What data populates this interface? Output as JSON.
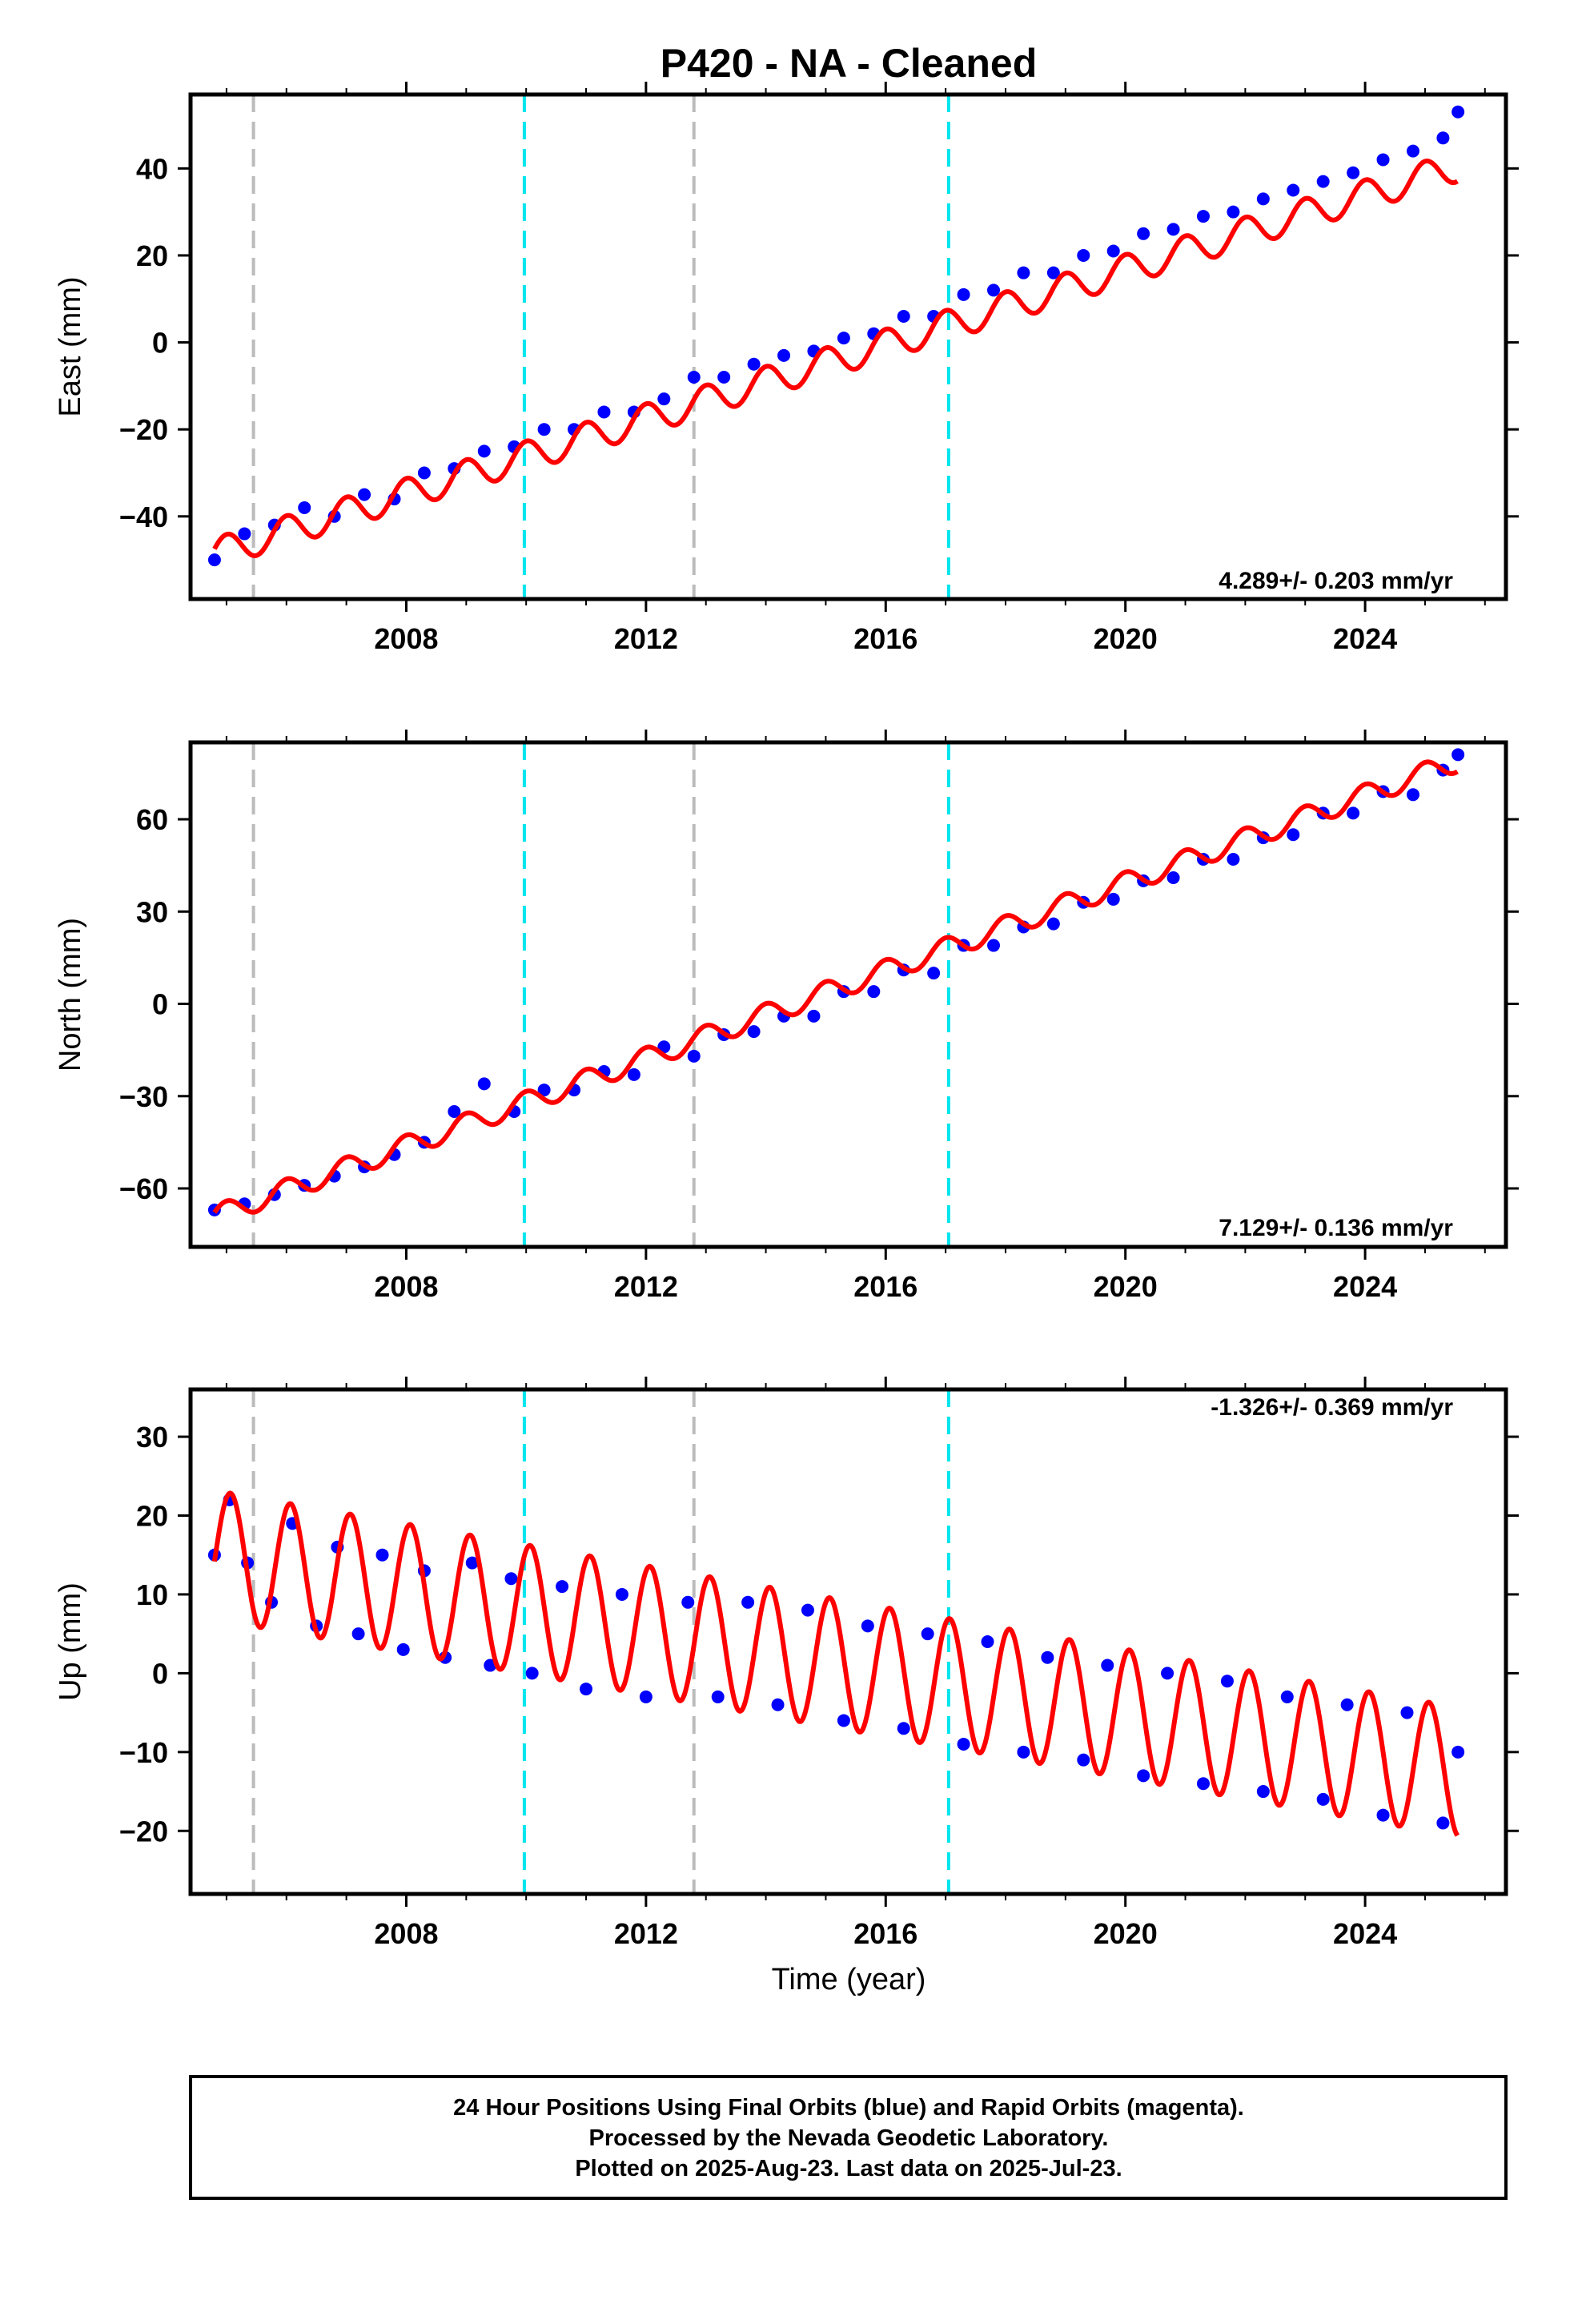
{
  "title": "P420  - NA - Cleaned",
  "xlabel": "Time (year)",
  "footer": {
    "line1": "24 Hour Positions Using Final Orbits (blue) and Rapid Orbits (magenta).",
    "line2": "Processed by the Nevada Geodetic Laboratory.",
    "line3": "Plotted on 2025-Aug-23. Last data on 2025-Jul-23."
  },
  "colors": {
    "data": "#0000ff",
    "fit": "#ff0000",
    "equipment_change": "#bbbbbb",
    "earthquake": "#00e5ee"
  },
  "chart_data": [
    {
      "type": "scatter",
      "component": "East",
      "ylabel": "East (mm)",
      "rate_text": "4.289+/- 0.203 mm/yr",
      "xlim": [
        2004.4,
        2026.35
      ],
      "ylim": [
        -59,
        57
      ],
      "xticks": [
        2008,
        2012,
        2016,
        2020,
        2024
      ],
      "yticks": [
        -40,
        -20,
        0,
        20,
        40
      ],
      "vlines_gray": [
        2005.45,
        2012.8
      ],
      "vlines_cyan": [
        2009.97,
        2017.05
      ],
      "fit": {
        "start": 2004.8,
        "end": 2025.55,
        "t0": 2004.8,
        "offset": -48.5,
        "rate": 4.289,
        "amp": 3.5,
        "phase": 0.3
      },
      "series": [
        {
          "name": "data",
          "x": [
            2004.8,
            2005.3,
            2005.8,
            2006.3,
            2006.8,
            2007.3,
            2007.8,
            2008.3,
            2008.8,
            2009.3,
            2009.8,
            2010.3,
            2010.8,
            2011.3,
            2011.8,
            2012.3,
            2012.8,
            2013.3,
            2013.8,
            2014.3,
            2014.8,
            2015.3,
            2015.8,
            2016.3,
            2016.8,
            2017.3,
            2017.8,
            2018.3,
            2018.8,
            2019.3,
            2019.8,
            2020.3,
            2020.8,
            2021.3,
            2021.8,
            2022.3,
            2022.8,
            2023.3,
            2023.8,
            2024.3,
            2024.8,
            2025.3,
            2025.55
          ],
          "y": [
            -50,
            -44,
            -42,
            -38,
            -40,
            -35,
            -36,
            -30,
            -29,
            -25,
            -24,
            -20,
            -20,
            -16,
            -16,
            -13,
            -8,
            -8,
            -5,
            -3,
            -2,
            1,
            2,
            6,
            6,
            11,
            12,
            16,
            16,
            20,
            21,
            25,
            26,
            29,
            30,
            33,
            35,
            37,
            39,
            42,
            44,
            47,
            53
          ]
        }
      ]
    },
    {
      "type": "scatter",
      "component": "North",
      "ylabel": "North (mm)",
      "rate_text": "7.129+/- 0.136 mm/yr",
      "xlim": [
        2004.4,
        2026.35
      ],
      "ylim": [
        -79,
        85
      ],
      "xticks": [
        2008,
        2012,
        2016,
        2020,
        2024
      ],
      "yticks": [
        -60,
        -30,
        0,
        30,
        60
      ],
      "vlines_gray": [
        2005.45,
        2012.8
      ],
      "vlines_cyan": [
        2009.97,
        2017.05
      ],
      "fit": {
        "start": 2004.8,
        "end": 2025.55,
        "t0": 2004.8,
        "offset": -69,
        "rate": 7.129,
        "amp": 3.5,
        "phase": 0.35
      },
      "series": [
        {
          "name": "data",
          "x": [
            2004.8,
            2005.3,
            2005.8,
            2006.3,
            2006.8,
            2007.3,
            2007.8,
            2008.3,
            2008.8,
            2009.3,
            2009.8,
            2010.3,
            2010.8,
            2011.3,
            2011.8,
            2012.3,
            2012.8,
            2013.3,
            2013.8,
            2014.3,
            2014.8,
            2015.3,
            2015.8,
            2016.3,
            2016.8,
            2017.3,
            2017.8,
            2018.3,
            2018.8,
            2019.3,
            2019.8,
            2020.3,
            2020.8,
            2021.3,
            2021.8,
            2022.3,
            2022.8,
            2023.3,
            2023.8,
            2024.3,
            2024.8,
            2025.3,
            2025.55
          ],
          "y": [
            -67,
            -65,
            -62,
            -59,
            -56,
            -53,
            -49,
            -45,
            -35,
            -26,
            -35,
            -28,
            -28,
            -22,
            -23,
            -14,
            -17,
            -10,
            -9,
            -4,
            -4,
            4,
            4,
            11,
            10,
            19,
            19,
            25,
            26,
            33,
            34,
            40,
            41,
            47,
            47,
            54,
            55,
            62,
            62,
            69,
            68,
            76,
            81
          ]
        }
      ]
    },
    {
      "type": "scatter",
      "component": "Up",
      "ylabel": "Up (mm)",
      "rate_text": "-1.326+/- 0.369 mm/yr",
      "xlim": [
        2004.4,
        2026.35
      ],
      "ylim": [
        -28,
        36
      ],
      "xticks": [
        2008,
        2012,
        2016,
        2020,
        2024
      ],
      "yticks": [
        -20,
        -10,
        0,
        10,
        20,
        30
      ],
      "vlines_gray": [
        2005.45,
        2012.8
      ],
      "vlines_cyan": [
        2009.97,
        2017.05
      ],
      "fit": {
        "start": 2004.8,
        "end": 2025.55,
        "t0": 2004.8,
        "offset": 15,
        "rate": -1.326,
        "amp": 8.2,
        "phase": -0.1
      },
      "series": [
        {
          "name": "data",
          "x": [
            2004.8,
            2005.05,
            2005.35,
            2005.75,
            2006.1,
            2006.5,
            2006.85,
            2007.2,
            2007.6,
            2007.95,
            2008.3,
            2008.65,
            2009.1,
            2009.4,
            2009.75,
            2010.1,
            2010.6,
            2011.0,
            2011.6,
            2012.0,
            2012.7,
            2013.2,
            2013.7,
            2014.2,
            2014.7,
            2015.3,
            2015.7,
            2016.3,
            2016.7,
            2017.3,
            2017.7,
            2018.3,
            2018.7,
            2019.3,
            2019.7,
            2020.3,
            2020.7,
            2021.3,
            2021.7,
            2022.3,
            2022.7,
            2023.3,
            2023.7,
            2024.3,
            2024.7,
            2025.3,
            2025.55
          ],
          "y": [
            15,
            22,
            14,
            9,
            19,
            6,
            16,
            5,
            15,
            3,
            13,
            2,
            14,
            1,
            12,
            0,
            11,
            -2,
            10,
            -3,
            9,
            -3,
            9,
            -4,
            8,
            -6,
            6,
            -7,
            5,
            -9,
            4,
            -10,
            2,
            -11,
            1,
            -13,
            0,
            -14,
            -1,
            -15,
            -3,
            -16,
            -4,
            -18,
            -5,
            -19,
            -10
          ]
        }
      ]
    }
  ]
}
